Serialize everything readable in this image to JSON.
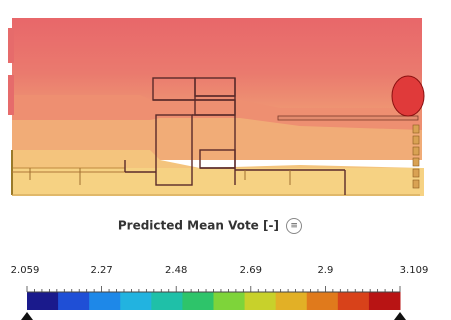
{
  "legend": {
    "title": "Predicted Mean Vote [-]",
    "icon": "list-icon",
    "min": 2.059,
    "max": 3.109,
    "tick_labels": [
      "2.059",
      "2.27",
      "2.48",
      "2.69",
      "2.9",
      "3.109"
    ],
    "colormap": [
      "#1a1a8c",
      "#1f4fd6",
      "#1e88e8",
      "#22b3e0",
      "#1fc0a8",
      "#2ec46a",
      "#7ed43a",
      "#c8d12b",
      "#e2b026",
      "#e07a1c",
      "#d8421a",
      "#b81414"
    ]
  },
  "field_colors": {
    "hot": "#e8696a",
    "warm": "#eb8a6f",
    "mild": "#f0b077",
    "cool": "#f4c97d",
    "outline": "#5a2a2a",
    "hotspot": "#e03a3a"
  }
}
